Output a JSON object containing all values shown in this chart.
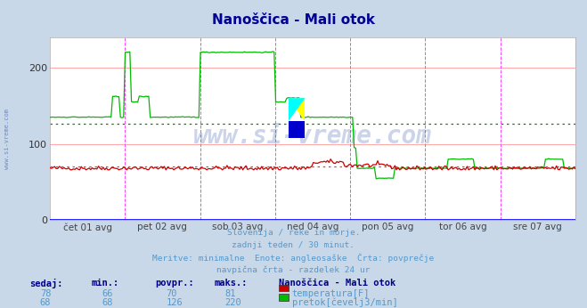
{
  "title": "Nanoščica - Mali otok",
  "title_color": "#000099",
  "bg_color": "#c8d8e8",
  "plot_bg_color": "#ffffff",
  "grid_color_h": "#ffaaaa",
  "grid_color_v": "#ff44ff",
  "x_labels": [
    "čet 01 avg",
    "pet 02 avg",
    "sob 03 avg",
    "ned 04 avg",
    "pon 05 avg",
    "tor 06 avg",
    "sre 07 avg"
  ],
  "y_ticks": [
    0,
    100,
    200
  ],
  "y_lim": [
    0,
    240
  ],
  "temp_color": "#cc0000",
  "flow_color": "#00bb00",
  "avg_temp_color": "#dd4444",
  "avg_flow_color": "#008800",
  "watermark_color": "#3355aa",
  "watermark_alpha": 0.25,
  "watermark_text": "www.si-vreme.com",
  "side_watermark_text": "www.si-vreme.com",
  "subtitle_lines": [
    "Slovenija / reke in morje.",
    "zadnji teden / 30 minut.",
    "Meritve: minimalne  Enote: angleosaške  Črta: povprečje",
    "navpična črta - razdelek 24 ur"
  ],
  "subtitle_color": "#5599cc",
  "table_header": [
    "sedaj:",
    "min.:",
    "povpr.:",
    "maks.:",
    "Nanoščica - Mali otok"
  ],
  "table_rows": [
    [
      78,
      66,
      70,
      81,
      "temperatura[F]"
    ],
    [
      68,
      68,
      126,
      220,
      "pretok[čevelj3/min]"
    ]
  ],
  "table_color": "#5599cc",
  "table_bold_color": "#000088",
  "n_points": 336,
  "days": 7,
  "avg_temp": 70,
  "avg_flow": 126
}
